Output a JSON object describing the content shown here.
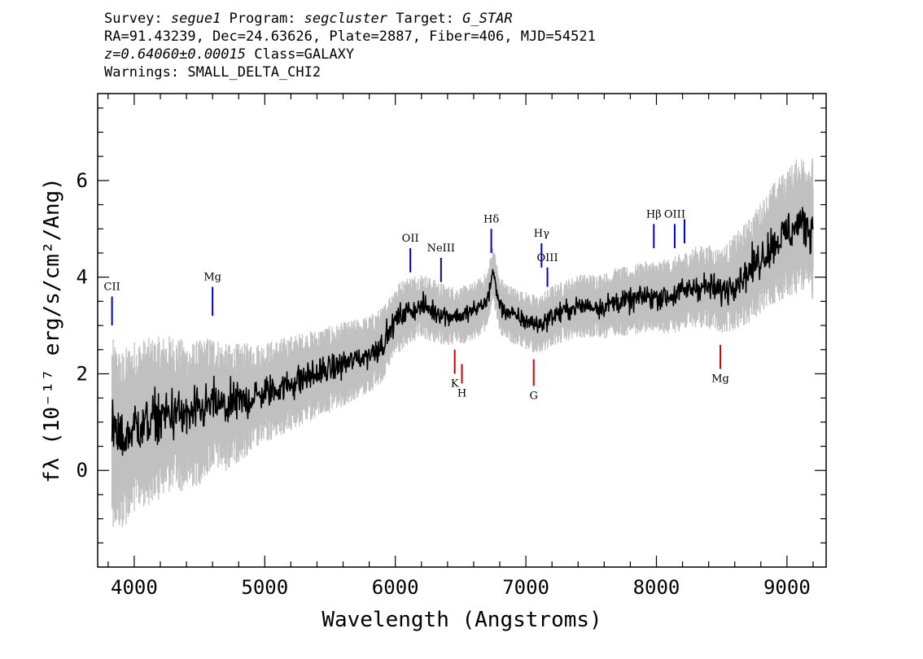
{
  "header": {
    "line1": {
      "survey_label": "Survey: ",
      "survey": "segue1",
      "program_label": " Program: ",
      "program": "segcluster",
      "target_label": " Target: ",
      "target": "G_STAR"
    },
    "line2": "RA=91.43239, Dec=24.63626, Plate=2887, Fiber=406, MJD=54521",
    "line3": {
      "z": "z=0.64060±0.00015",
      "class": " Class=GALAXY"
    },
    "line4": "Warnings: SMALL_DELTA_CHI2"
  },
  "chart_data": {
    "type": "line",
    "title": "",
    "xlabel": "Wavelength (Angstroms)",
    "ylabel": "fλ (10⁻¹⁷ erg/s/cm²/Ang)",
    "xlim": [
      3720,
      9300
    ],
    "ylim": [
      -2.0,
      7.8
    ],
    "x_ticks": [
      4000,
      5000,
      6000,
      7000,
      8000,
      9000
    ],
    "y_ticks": [
      0,
      2,
      4,
      6
    ],
    "grid": false,
    "colors": {
      "flux": "#000000",
      "error": "#c0c0c0",
      "emission": "#0000cc",
      "absorption": "#cc0000"
    },
    "series": [
      {
        "role": "flux",
        "x": [
          3830,
          3900,
          4000,
          4100,
          4200,
          4300,
          4400,
          4500,
          4600,
          4700,
          4800,
          4900,
          5000,
          5100,
          5200,
          5300,
          5400,
          5500,
          5600,
          5700,
          5800,
          5900,
          6000,
          6100,
          6200,
          6300,
          6400,
          6500,
          6600,
          6700,
          6750,
          6800,
          6900,
          7000,
          7100,
          7200,
          7300,
          7400,
          7500,
          7600,
          7700,
          7800,
          7900,
          8000,
          8100,
          8200,
          8300,
          8400,
          8500,
          8600,
          8700,
          8800,
          8900,
          9000,
          9100,
          9200
        ],
        "y": [
          0.8,
          0.6,
          0.9,
          1.0,
          1.1,
          1.2,
          1.1,
          1.2,
          1.4,
          1.3,
          1.4,
          1.5,
          1.6,
          1.7,
          1.8,
          1.9,
          2.0,
          2.1,
          2.2,
          2.3,
          2.4,
          2.6,
          3.1,
          3.3,
          3.4,
          3.3,
          3.2,
          3.2,
          3.3,
          3.5,
          4.1,
          3.4,
          3.2,
          3.1,
          3.0,
          3.2,
          3.3,
          3.4,
          3.4,
          3.4,
          3.5,
          3.5,
          3.6,
          3.6,
          3.6,
          3.7,
          3.8,
          3.8,
          3.7,
          3.9,
          4.1,
          4.4,
          4.7,
          4.9,
          5.1,
          5.0
        ]
      },
      {
        "role": "error",
        "x": [
          3830,
          4000,
          4500,
          5000,
          5500,
          6000,
          6500,
          7000,
          7500,
          8000,
          8500,
          9000,
          9200
        ],
        "y": [
          1.3,
          1.2,
          1.0,
          0.7,
          0.6,
          0.5,
          0.4,
          0.4,
          0.45,
          0.5,
          0.6,
          0.9,
          1.0
        ]
      }
    ],
    "line_markers": [
      {
        "label": "CII",
        "x": 3830,
        "kind": "emission",
        "y0": 3.0,
        "y1": 3.6
      },
      {
        "label": "Mg",
        "x": 4600,
        "kind": "emission",
        "y0": 3.2,
        "y1": 3.8
      },
      {
        "label": "OII",
        "x": 6115,
        "kind": "emission",
        "y0": 4.1,
        "y1": 4.6
      },
      {
        "label": "NeIII",
        "x": 6350,
        "kind": "emission",
        "y0": 3.9,
        "y1": 4.4
      },
      {
        "label": "Hδ",
        "x": 6735,
        "kind": "emission",
        "y0": 4.5,
        "y1": 5.0
      },
      {
        "label": "Hγ",
        "x": 7120,
        "kind": "emission",
        "y0": 4.2,
        "y1": 4.7
      },
      {
        "label": "OIII",
        "x": 7165,
        "kind": "emission",
        "y0": 3.8,
        "y1": 4.2
      },
      {
        "label": "Hβ",
        "x": 7980,
        "kind": "emission",
        "y0": 4.6,
        "y1": 5.1
      },
      {
        "label": "OIII",
        "x": 8140,
        "kind": "emission",
        "y0": 4.6,
        "y1": 5.1
      },
      {
        "label": "",
        "x": 8215,
        "kind": "emission",
        "y0": 4.7,
        "y1": 5.2
      },
      {
        "label": "K",
        "x": 6455,
        "kind": "absorption",
        "y0": 2.0,
        "y1": 2.5
      },
      {
        "label": "H",
        "x": 6510,
        "kind": "absorption",
        "y0": 1.8,
        "y1": 2.2
      },
      {
        "label": "G",
        "x": 7060,
        "kind": "absorption",
        "y0": 1.75,
        "y1": 2.3
      },
      {
        "label": "Mg",
        "x": 8490,
        "kind": "absorption",
        "y0": 2.1,
        "y1": 2.6
      }
    ]
  }
}
